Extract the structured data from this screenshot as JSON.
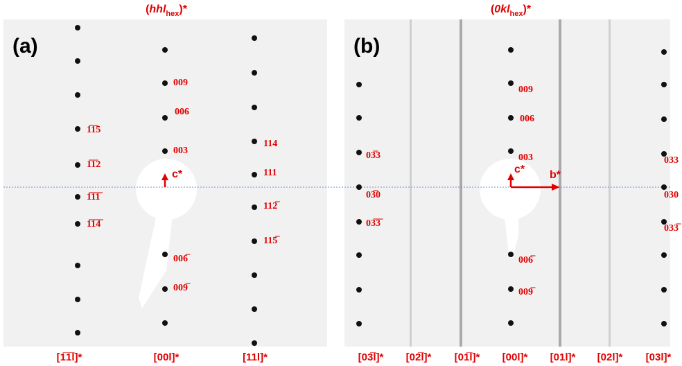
{
  "panels": [
    {
      "label": "(a)",
      "title": {
        "open": "(",
        "index": "hhl",
        "sub": "hex",
        "close": ")*"
      },
      "axis": "c*",
      "spots": [
        "009",
        "006",
        "003",
        "1̅1̅5",
        "1̅1̅2",
        "1̅1̅1̅",
        "1̅1̅4̅",
        "114",
        "111",
        "112̅",
        "115̅",
        "006̅",
        "009̅"
      ],
      "rows": [
        "[1̅1̅l]*",
        "[00l]*",
        "[11l]*"
      ]
    },
    {
      "label": "(b)",
      "title": {
        "open": "(",
        "index": "0kl",
        "sub": "hex",
        "close": ")*"
      },
      "axis": "c*",
      "axis2": "b*",
      "spots": [
        "009",
        "006",
        "003",
        "006̅",
        "009̅",
        "03̅3",
        "03̅0",
        "03̅3̅",
        "033",
        "030",
        "033̅"
      ],
      "rows": [
        "[03̅l]*",
        "[02̅l]*",
        "[01̅l]*",
        "[00l]*",
        "[01l]*",
        "[02l]*",
        "[03l]*"
      ]
    }
  ]
}
